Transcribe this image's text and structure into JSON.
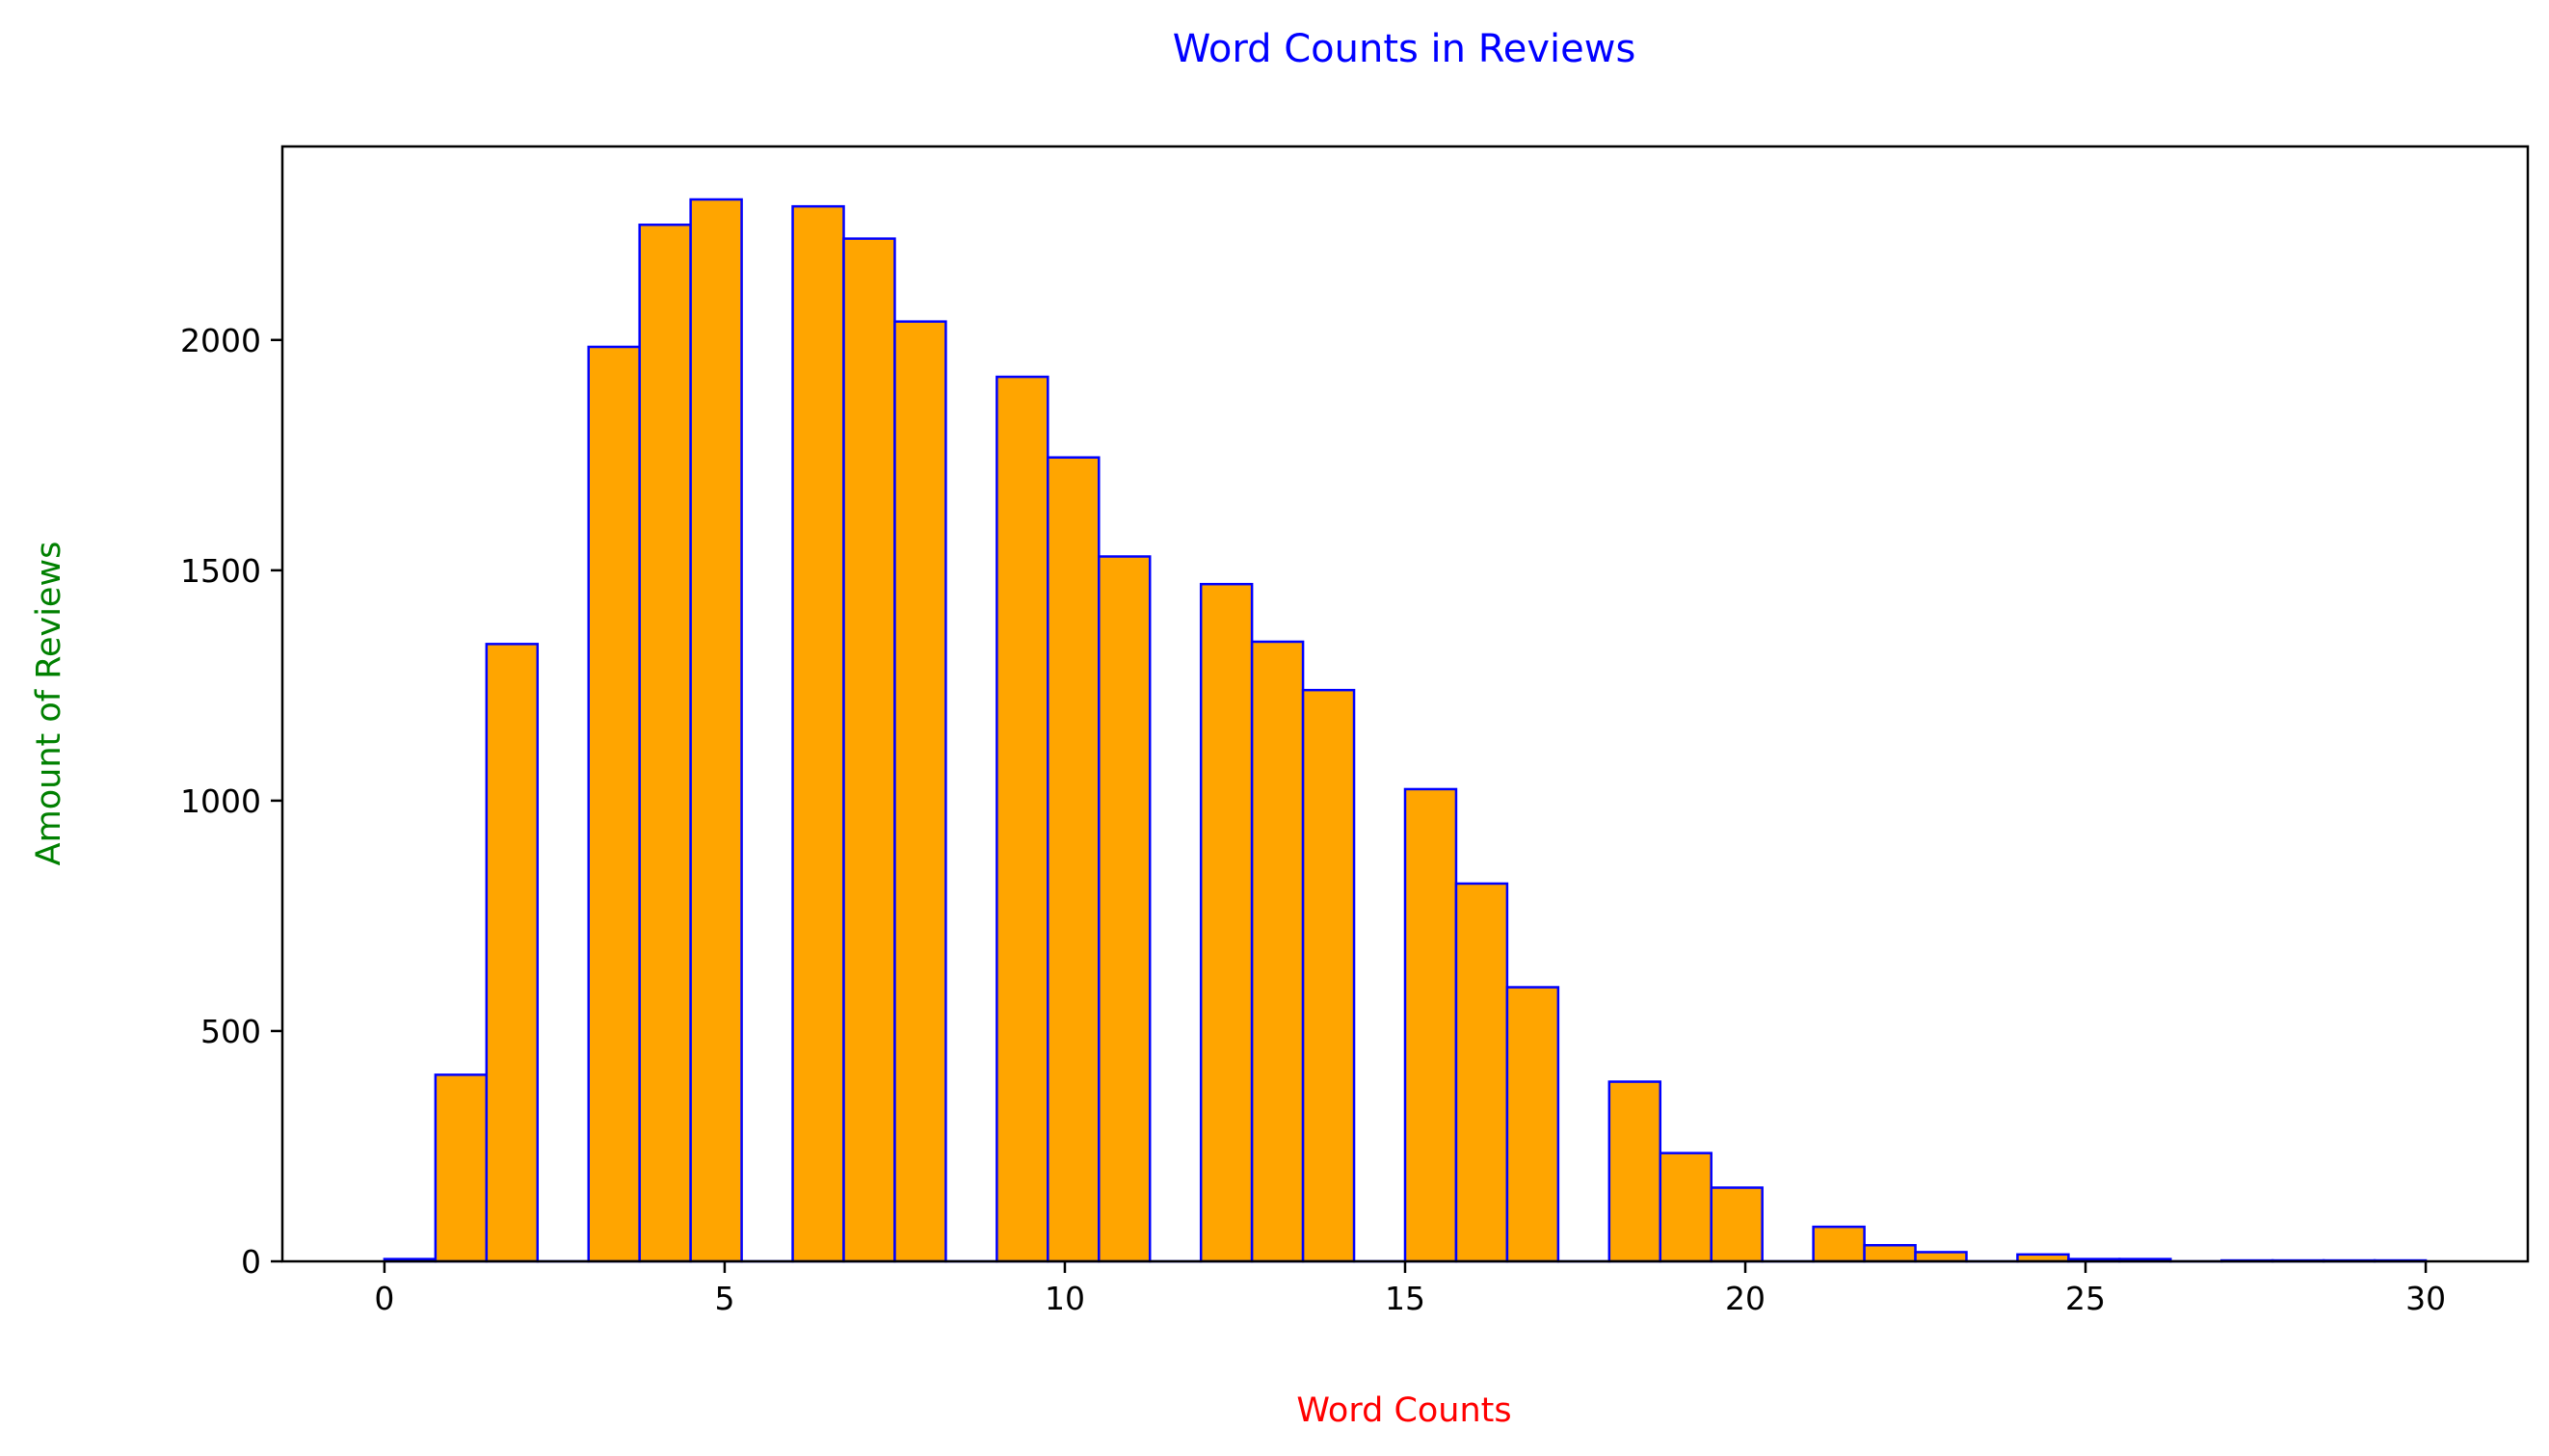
{
  "chart_data": {
    "type": "bar",
    "subtype": "histogram",
    "title": "Word Counts in Reviews",
    "xlabel": "Word Counts",
    "ylabel": "Amount of Reviews",
    "xlim": [
      -1.5,
      31.5
    ],
    "ylim": [
      0,
      2420
    ],
    "x_ticks": [
      0,
      5,
      10,
      15,
      20,
      25,
      30
    ],
    "y_ticks": [
      0,
      500,
      1000,
      1500,
      2000
    ],
    "bin_width": 0.75,
    "bins_start": 0,
    "values": [
      5,
      405,
      1340,
      0,
      1985,
      2250,
      2305,
      0,
      2290,
      2220,
      2040,
      0,
      1920,
      1745,
      1530,
      0,
      1470,
      1345,
      1240,
      0,
      1025,
      820,
      595,
      0,
      390,
      235,
      160,
      0,
      75,
      35,
      20,
      0,
      15,
      5,
      5,
      0,
      2,
      2,
      2,
      2
    ],
    "grid": false,
    "legend": "none",
    "colors": {
      "bar_fill": "#ffa500",
      "bar_edge": "#0000ff",
      "title": "#0000ff",
      "xlabel": "#ff0000",
      "ylabel": "#008000"
    }
  }
}
